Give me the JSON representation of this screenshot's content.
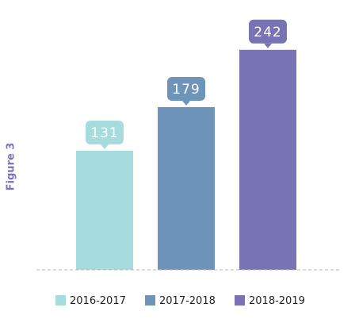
{
  "side_label": "Figure 3",
  "chart_data": {
    "type": "bar",
    "categories": [
      "2016-2017",
      "2017-2018",
      "2018-2019"
    ],
    "values": [
      131,
      179,
      242
    ],
    "colors": [
      "#a7dcdf",
      "#6f94b9",
      "#7773b4"
    ],
    "ylim": [
      0,
      275
    ],
    "grid": false,
    "data_labels": true,
    "legend_position": "bottom"
  }
}
